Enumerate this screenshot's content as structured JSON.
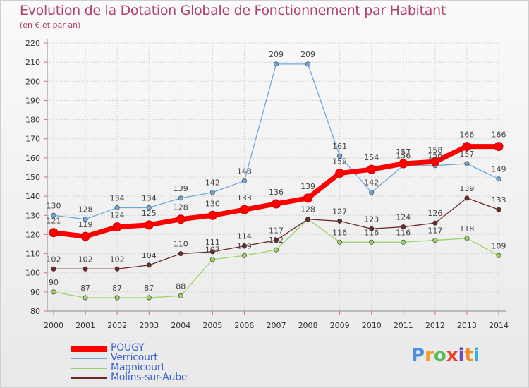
{
  "title": "Evolution de la Dotation Globale de Fonctionnement par Habitant",
  "subtitle": "(en € et par an)",
  "logo_text": "Proxiti",
  "chart_data": {
    "type": "line",
    "title": "Evolution de la Dotation Globale de Fonctionnement par Habitant",
    "subtitle": "(en € et par an)",
    "xlabel": "",
    "ylabel": "",
    "x": [
      "2000",
      "2001",
      "2002",
      "2003",
      "2004",
      "2005",
      "2006",
      "2007",
      "2008",
      "2009",
      "2010",
      "2011",
      "2012",
      "2013",
      "2014"
    ],
    "yticks": [
      "80",
      "90",
      "100",
      "110",
      "120",
      "130",
      "140",
      "150",
      "160",
      "170",
      "180",
      "190",
      "200",
      "210",
      "220"
    ],
    "ylim": [
      80,
      220
    ],
    "grid": true,
    "legend_position": "bottom-left",
    "series": [
      {
        "name": "POUGY",
        "color": "#ff0000",
        "values": [
          121,
          119,
          124,
          125,
          128,
          130,
          133,
          136,
          139,
          152,
          154,
          157,
          158,
          166,
          166
        ]
      },
      {
        "name": "Verricourt",
        "color": "#6fa8dc",
        "values": [
          130,
          128,
          134,
          134,
          139,
          142,
          148,
          209,
          209,
          161,
          142,
          156,
          156,
          157,
          149
        ]
      },
      {
        "name": "Magnicourt",
        "color": "#9bd36a",
        "values": [
          90,
          87,
          87,
          87,
          88,
          107,
          109,
          112,
          128,
          116,
          116,
          116,
          117,
          118,
          109
        ]
      },
      {
        "name": "Molins-sur-Aube",
        "color": "#6b2a2a",
        "values": [
          102,
          102,
          102,
          104,
          110,
          111,
          114,
          117,
          128,
          127,
          123,
          124,
          126,
          139,
          133
        ]
      }
    ],
    "data_labels": [
      {
        "series": "POUGY",
        "labels": [
          "121",
          "119",
          "124",
          "125",
          "128",
          "130",
          "133",
          "136",
          "139",
          "152",
          "154",
          "157",
          "158",
          "166",
          "166"
        ]
      },
      {
        "series": "Verricourt",
        "labels": [
          "130",
          "128",
          "134",
          "134",
          "139",
          "142",
          "148",
          "209",
          "209",
          "161",
          "142",
          "156",
          "156",
          "157",
          "149"
        ]
      },
      {
        "series": "Magnicourt",
        "labels": [
          "90",
          "87",
          "87",
          "87",
          "88",
          "107",
          "109",
          "112",
          "",
          "116",
          "116",
          "116",
          "117",
          "118",
          "109"
        ]
      },
      {
        "series": "Molins-sur-Aube",
        "labels": [
          "102",
          "102",
          "102",
          "104",
          "110",
          "111",
          "114",
          "117",
          "128",
          "127",
          "123",
          "124",
          "126",
          "139",
          "133"
        ]
      }
    ]
  }
}
